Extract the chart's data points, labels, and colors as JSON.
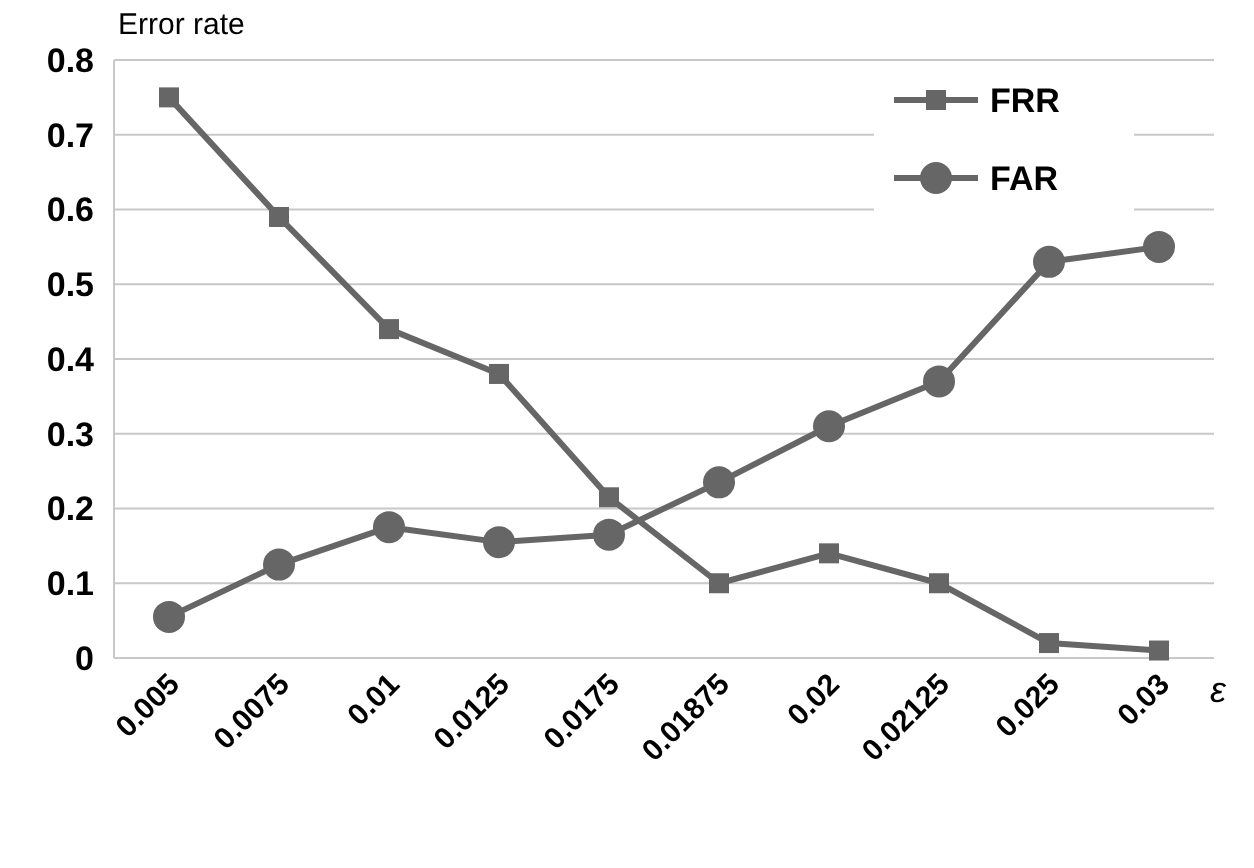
{
  "chart_data": {
    "type": "line",
    "ylabel": "Error rate",
    "xlabel": "ε",
    "categories": [
      "0.005",
      "0.0075",
      "0.01",
      "0.0125",
      "0.0175",
      "0.01875",
      "0.02",
      "0.02125",
      "0.025",
      "0.03"
    ],
    "series": [
      {
        "name": "FRR",
        "color": "#666666",
        "marker": "square",
        "values": [
          0.75,
          0.59,
          0.44,
          0.38,
          0.215,
          0.1,
          0.14,
          0.1,
          0.02,
          0.01
        ]
      },
      {
        "name": "FAR",
        "color": "#666666",
        "marker": "circle",
        "values": [
          0.055,
          0.125,
          0.175,
          0.155,
          0.165,
          0.235,
          0.31,
          0.37,
          0.53,
          0.55
        ]
      }
    ],
    "ylim": [
      0,
      0.8
    ],
    "yticks": [
      0,
      0.1,
      0.2,
      0.3,
      0.4,
      0.5,
      0.6,
      0.7,
      0.8
    ],
    "grid": "y",
    "legend": "top right",
    "line_style": "solid"
  }
}
